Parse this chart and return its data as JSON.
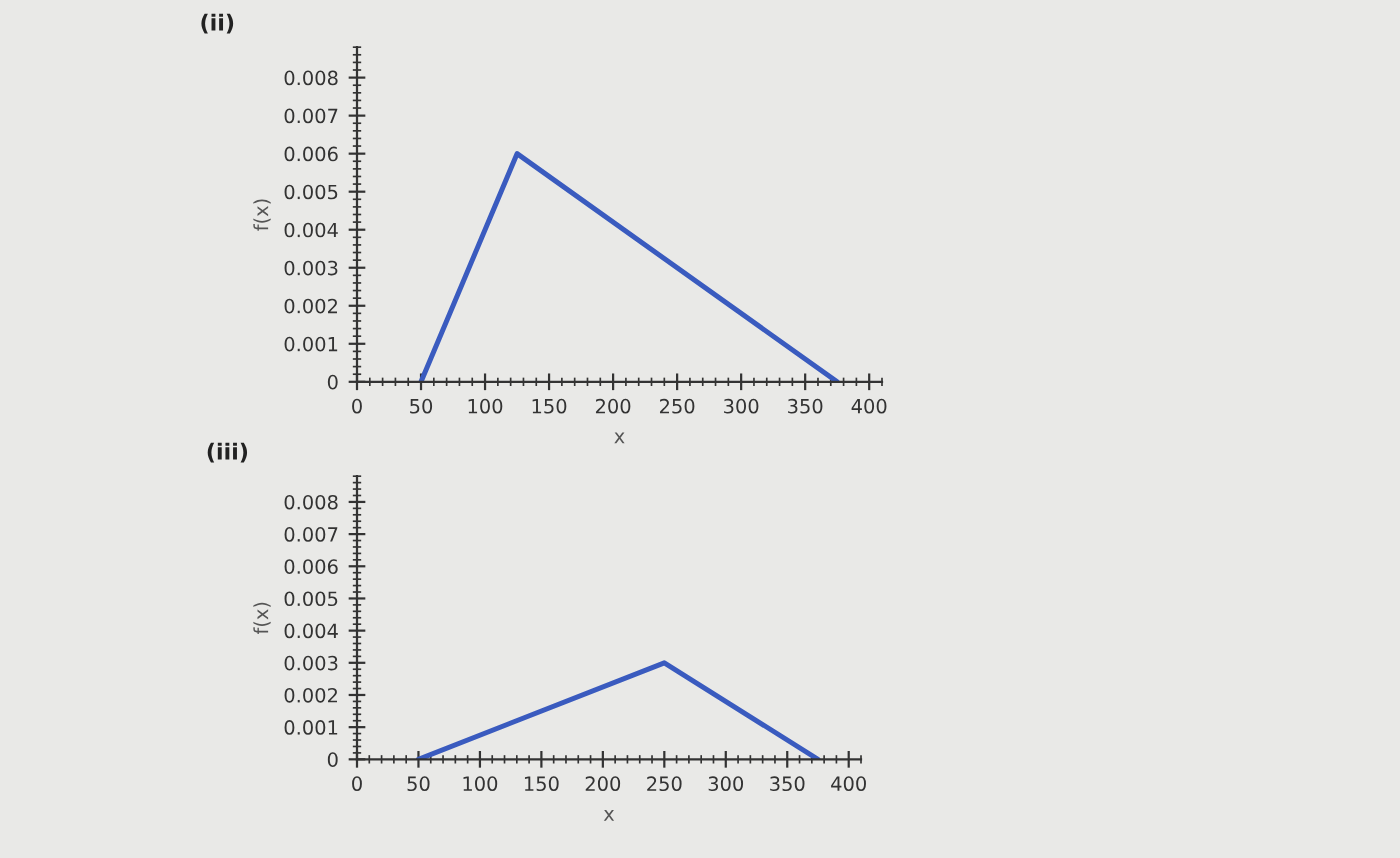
{
  "chart_data": [
    {
      "type": "line",
      "title": "(ii)",
      "xlabel": "x",
      "ylabel": "f(x)",
      "x": [
        50,
        125,
        375
      ],
      "series": [
        {
          "color": "#3a5bbf",
          "values": [
            0,
            0.006,
            0
          ]
        }
      ],
      "xlim": [
        0,
        410
      ],
      "ylim": [
        0,
        0.0088
      ],
      "xticks": [
        0,
        50,
        100,
        150,
        200,
        250,
        300,
        350,
        400
      ],
      "yticks": [
        0,
        0.001,
        0.002,
        0.003,
        0.004,
        0.005,
        0.006,
        0.007,
        0.008
      ],
      "grid": false
    },
    {
      "type": "line",
      "title": "(iii)",
      "xlabel": "x",
      "ylabel": "f(x)",
      "x": [
        50,
        250,
        375
      ],
      "series": [
        {
          "color": "#3a5bbf",
          "values": [
            0,
            0.003,
            0
          ]
        }
      ],
      "xlim": [
        0,
        410
      ],
      "ylim": [
        0,
        0.0088
      ],
      "xticks": [
        0,
        50,
        100,
        150,
        200,
        250,
        300,
        350,
        400
      ],
      "yticks": [
        0,
        0.001,
        0.002,
        0.003,
        0.004,
        0.005,
        0.006,
        0.007,
        0.008
      ],
      "grid": false
    }
  ]
}
